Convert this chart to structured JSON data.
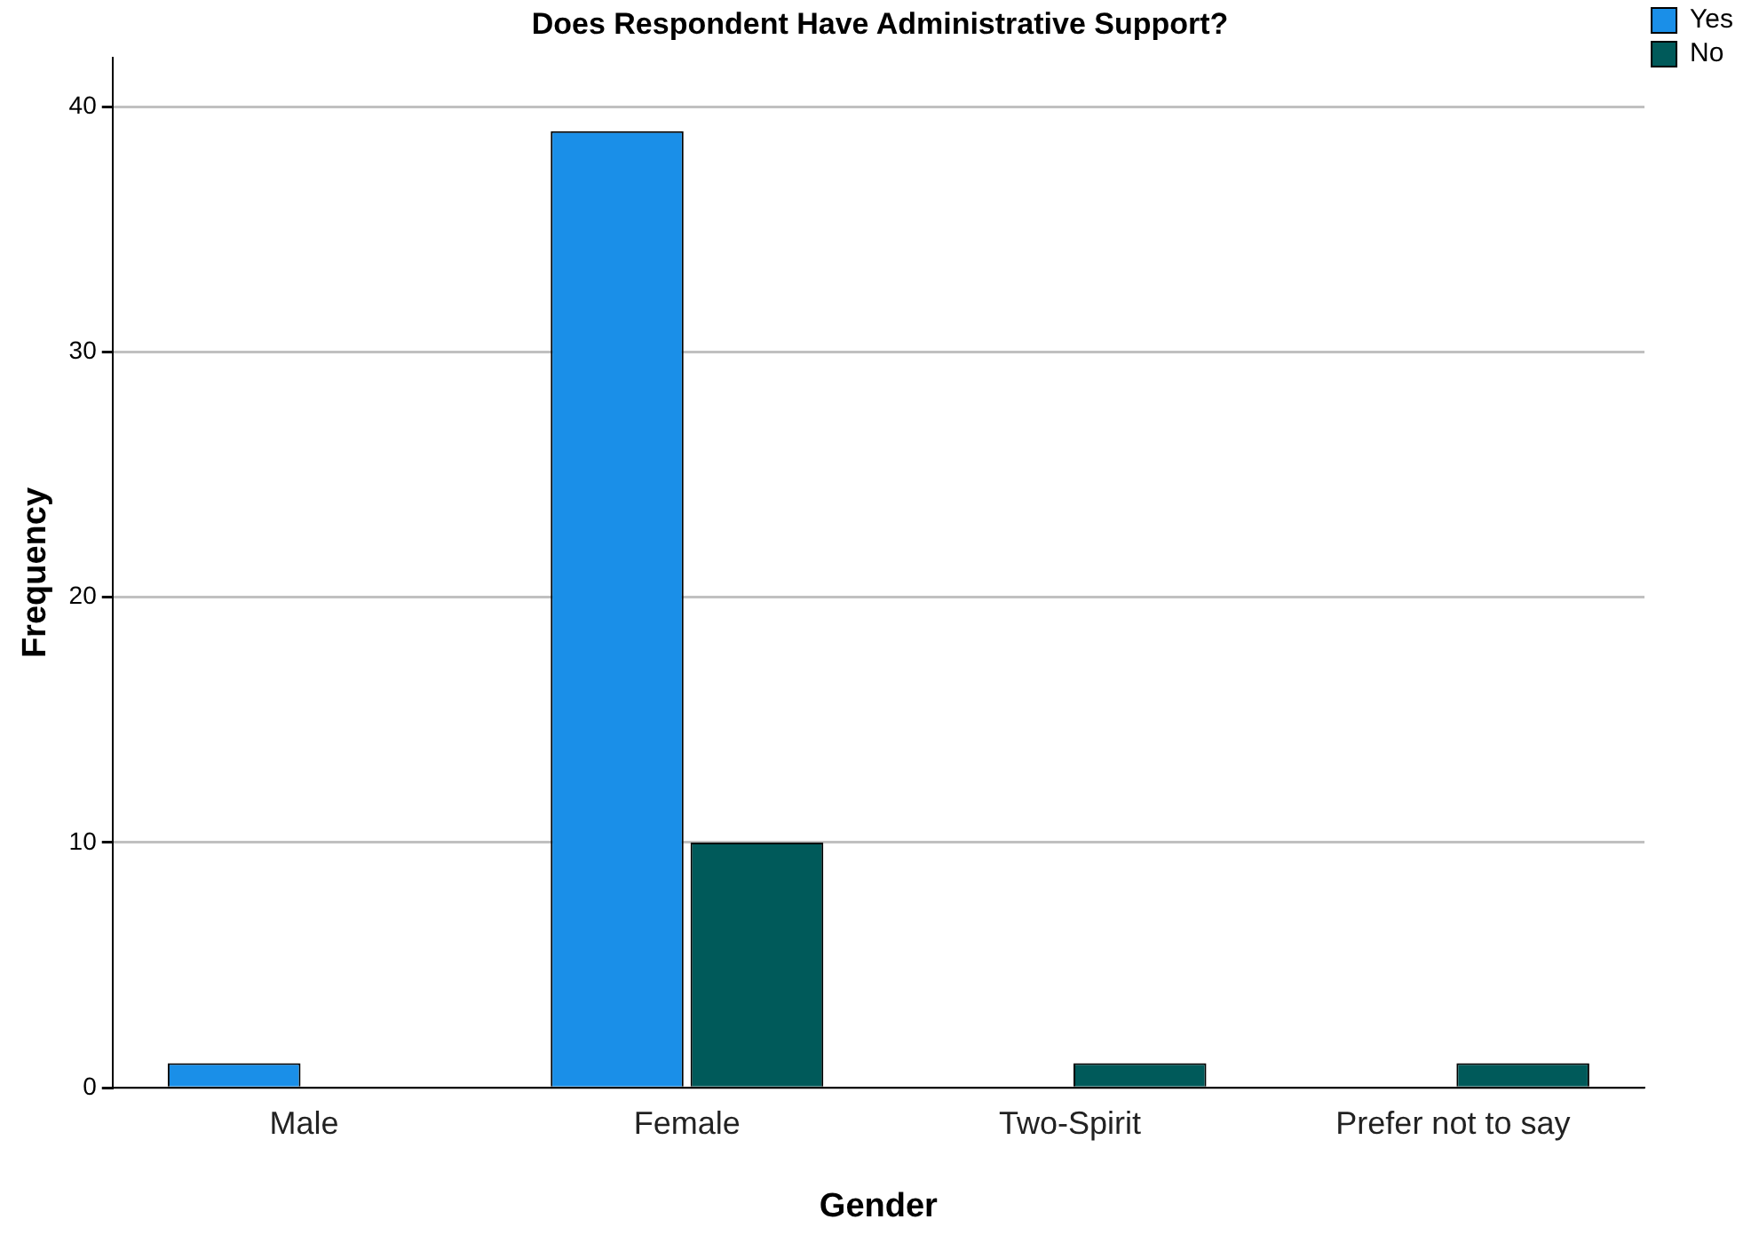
{
  "chart_data": {
    "type": "bar",
    "title": "Does Respondent Have Administrative Support?",
    "xlabel": "Gender",
    "ylabel": "Frequency",
    "categories": [
      "Male",
      "Female",
      "Two-Spirit",
      "Prefer not to say"
    ],
    "series": [
      {
        "name": "Yes",
        "color": "#1a8fe8",
        "values": [
          1,
          39,
          0,
          0
        ]
      },
      {
        "name": "No",
        "color": "#005a5a",
        "values": [
          0,
          10,
          1,
          1
        ]
      }
    ],
    "ylim": [
      0,
      42
    ],
    "yticks": [
      0,
      10,
      20,
      30,
      40
    ],
    "grid": "y",
    "legend": "top right"
  }
}
